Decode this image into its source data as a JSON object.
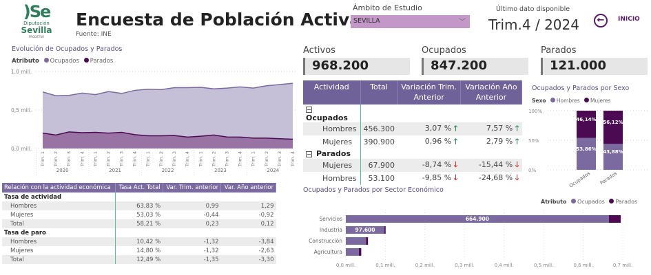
{
  "header": {
    "logo_text": {
      "mark": "Se",
      "line1": "Diputación",
      "line2": "Sevilla",
      "line3": "PRODETUR"
    },
    "title": "Encuesta de Población Activa",
    "source": "Fuente: INE",
    "ambito_label": "Ámbito de Estudio",
    "ambito_value": "SEVILLA",
    "ultimo_label": "Último dato disponible",
    "ultimo_value": "Trim.4 / 2024",
    "inicio_label": "INICIO"
  },
  "kpis": [
    {
      "label": "Activos",
      "value": "968.200"
    },
    {
      "label": "Ocupados",
      "value": "847.200"
    },
    {
      "label": "Parados",
      "value": "121.000"
    }
  ],
  "colors": {
    "ocupados": "#7a6a9f",
    "ocupados_fill": "#c5c0d8",
    "parados": "#4b0a52",
    "parados_fill": "#9a73a5",
    "header": "#6f6298",
    "up": "#2e8b57",
    "down": "#d2382e",
    "select": "#c397c8"
  },
  "chart_data": [
    {
      "type": "area",
      "title": "Evolución de Ocupados y Parados",
      "legend_title": "Atributo",
      "legend_position": "top-left",
      "x": [
        "Trim. 1",
        "Trim. 2",
        "Trim. 3",
        "Trim. 4",
        "Trim. 1",
        "Trim. 2",
        "Trim. 3",
        "Trim. 4",
        "Trim. 1",
        "Trim. 2",
        "Trim. 3",
        "Trim. 4",
        "Trim. 1",
        "Trim. 2",
        "Trim. 3",
        "Trim. 4",
        "Trim. 1",
        "Trim. 2",
        "Trim. 3",
        "Trim. 4"
      ],
      "x_groups": [
        "2020",
        "2021",
        "2022",
        "2023",
        "2024"
      ],
      "yticks": [
        "0,0 mill.",
        "0,5 mill.",
        "1,0 mill."
      ],
      "ylim": [
        0,
        1.0
      ],
      "series": [
        {
          "name": "Ocupados",
          "values": [
            0.735,
            0.685,
            0.69,
            0.72,
            0.7,
            0.74,
            0.715,
            0.755,
            0.77,
            0.765,
            0.79,
            0.79,
            0.795,
            0.775,
            0.785,
            0.8,
            0.785,
            0.815,
            0.83,
            0.847
          ]
        },
        {
          "name": "Parados",
          "values": [
            0.2,
            0.175,
            0.215,
            0.205,
            0.21,
            0.2,
            0.21,
            0.18,
            0.165,
            0.165,
            0.168,
            0.148,
            0.16,
            0.175,
            0.15,
            0.148,
            0.135,
            0.135,
            0.127,
            0.121
          ]
        }
      ]
    },
    {
      "type": "bar",
      "stacked_percent": true,
      "title": "Ocupados y Parados por Sexo",
      "legend_title": "Sexo",
      "categories": [
        "Ocupados",
        "Parados"
      ],
      "yticks": [
        "0%",
        "50%",
        "100%"
      ],
      "series": [
        {
          "name": "Hombres",
          "values": [
            53.86,
            43.88
          ],
          "labels": [
            "53,86%",
            "43,88%"
          ]
        },
        {
          "name": "Mujeres",
          "values": [
            46.14,
            56.12
          ],
          "labels": [
            "46,14%",
            "56,12%"
          ]
        }
      ]
    },
    {
      "type": "bar",
      "orientation": "horizontal",
      "stacked": true,
      "title": "Ocupados y Parados por Sector Económico",
      "legend_title": "Atributo",
      "legend_position": "top-right",
      "categories": [
        "Servicios",
        "Industria",
        "Construcción",
        "Agricultura"
      ],
      "xticks": [
        "0,0 mill.",
        "0,1 mill.",
        "0,2 mill.",
        "0,3 mill.",
        "0,4 mill.",
        "0,5 mill.",
        "0,6 mill.",
        "0,7 mill."
      ],
      "xlim": [
        0,
        0.7
      ],
      "series": [
        {
          "name": "Ocupados",
          "values": [
            0.6649,
            0.0976,
            0.051,
            0.033
          ],
          "labels": [
            "664.900",
            "97.600",
            "",
            ""
          ]
        },
        {
          "name": "Parados",
          "values": [
            0.03,
            0.003,
            0.005,
            0.006
          ]
        }
      ]
    }
  ],
  "table_tasas": {
    "headers": [
      "Relación con la actividad económica",
      "Tasa Act. Total",
      "Var. Trim. anterior",
      "Var. Año anterior"
    ],
    "rows": [
      {
        "group": "Tasa de actividad"
      },
      {
        "cells": [
          "Hombres",
          "63,83 %",
          "0,99",
          "1,29"
        ]
      },
      {
        "cells": [
          "Mujeres",
          "53,03 %",
          "-0,44",
          "-0,92"
        ]
      },
      {
        "cells": [
          "Total",
          "58,21 %",
          "0,23",
          "0,12"
        ]
      },
      {
        "group": "Tasa de paro"
      },
      {
        "cells": [
          "Hombres",
          "10,42 %",
          "-1,32",
          "-3,84"
        ]
      },
      {
        "cells": [
          "Mujeres",
          "14,80 %",
          "-1,32",
          "-2,63"
        ]
      },
      {
        "cells": [
          "Total",
          "12,49 %",
          "-1,35",
          "-3,30"
        ]
      }
    ]
  },
  "table_actividad": {
    "headers": [
      "Actividad",
      "Total",
      "Variación Trim. Anterior",
      "Variación Año Anterior"
    ],
    "rows": [
      {
        "group": "Ocupados"
      },
      {
        "cells": [
          "Hombres",
          "456.300",
          "3,07 %",
          "7,57 %"
        ],
        "trend": [
          "up",
          "up"
        ]
      },
      {
        "cells": [
          "Mujeres",
          "390.900",
          "0,96 %",
          "2,79 %"
        ],
        "trend": [
          "up",
          "up"
        ]
      },
      {
        "group": "Parados"
      },
      {
        "cells": [
          "Mujeres",
          "67.900",
          "-8,74 %",
          "-15,44 %"
        ],
        "trend": [
          "down",
          "down"
        ]
      },
      {
        "cells": [
          "Hombres",
          "53.100",
          "-9,85 %",
          "-24,68 %"
        ],
        "trend": [
          "down",
          "down"
        ]
      }
    ]
  }
}
